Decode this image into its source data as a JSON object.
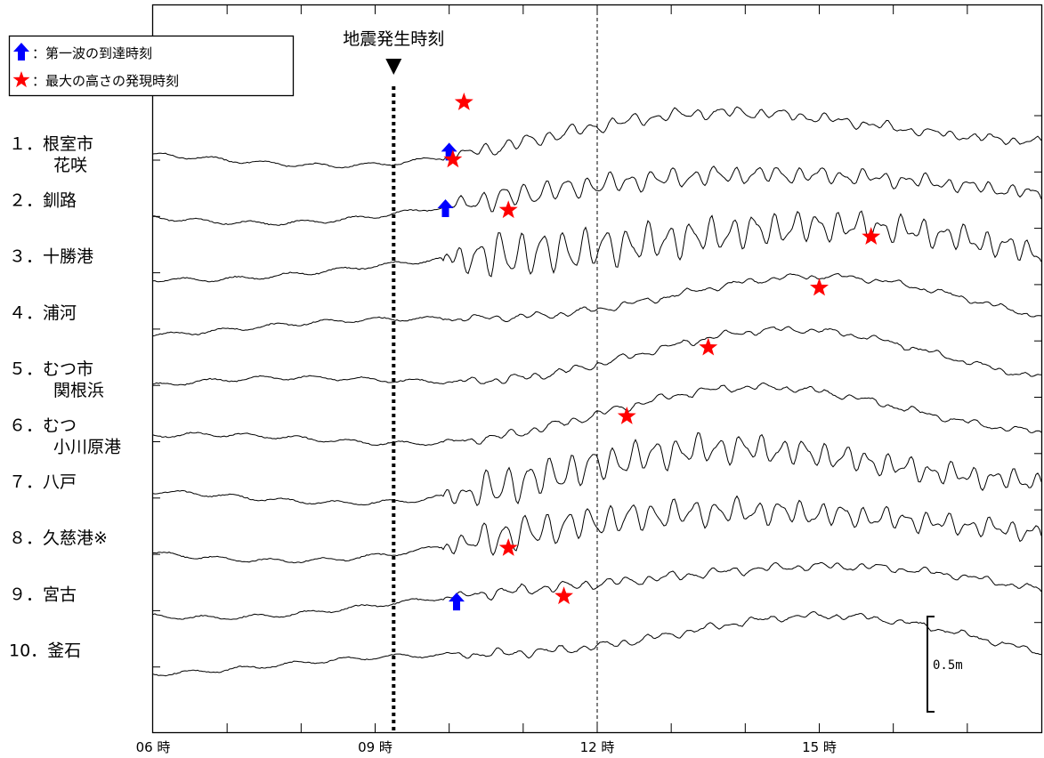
{
  "chart_data": {
    "type": "line",
    "x_ticks": [
      "06 時",
      "09 時",
      "12 時",
      "15 時"
    ],
    "xlim_hours": [
      6,
      18
    ],
    "quake_label": "地震発生時刻",
    "quake_time_hours": 9.25,
    "reference_line_hours": 12,
    "legend": {
      "position": "top-left",
      "arrow_text": "：第一波の到達時刻",
      "star_text": "：最大の高さの発現時刻",
      "arrow_color": "#0000ff",
      "star_color": "#ff0000"
    },
    "scale_bar_label": "0.5m",
    "scale_bar_m": 0.5,
    "stations": [
      {
        "label1": "１．根室市",
        "label2": "花咲",
        "first_wave_hours": 10.0,
        "max_hours": 10.2,
        "osc": 0.35
      },
      {
        "label1": "２．釧路",
        "label2": "",
        "first_wave_hours": 9.95,
        "max_hours": 10.05,
        "osc": 0.6
      },
      {
        "label1": "３．十勝港",
        "label2": "",
        "first_wave_hours": null,
        "max_hours": 10.8,
        "osc": 1.2
      },
      {
        "label1": "４．浦河",
        "label2": "",
        "first_wave_hours": null,
        "max_hours": 15.7,
        "osc": 0.15
      },
      {
        "label1": "５．むつ市",
        "label2": "関根浜",
        "first_wave_hours": null,
        "max_hours": 15.0,
        "osc": 0.18
      },
      {
        "label1": "６．むつ",
        "label2": "小川原港",
        "first_wave_hours": null,
        "max_hours": 13.5,
        "osc": 0.2
      },
      {
        "label1": "７．八戸",
        "label2": "",
        "first_wave_hours": null,
        "max_hours": 12.4,
        "osc": 1.0
      },
      {
        "label1": "８．久慈港※",
        "label2": "",
        "first_wave_hours": null,
        "max_hours": null,
        "osc": 0.9
      },
      {
        "label1": "９．宮古",
        "label2": "",
        "first_wave_hours": 10.1,
        "max_hours": 10.8,
        "osc": 0.25
      },
      {
        "label1": "10．釜石",
        "label2": "",
        "first_wave_hours": null,
        "max_hours": 11.55,
        "osc": 0.2
      }
    ]
  }
}
